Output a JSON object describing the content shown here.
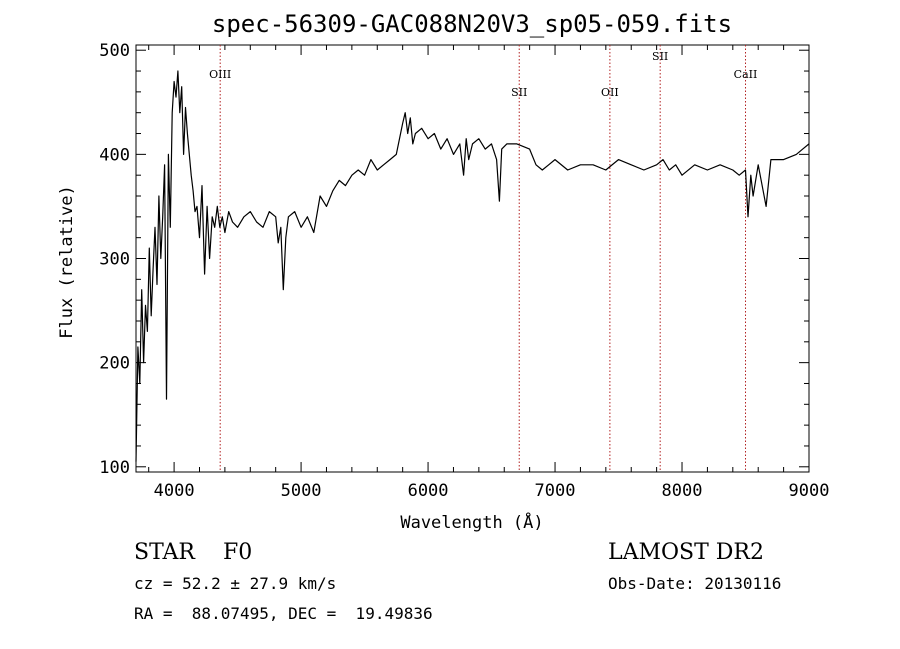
{
  "chart_data": {
    "type": "line",
    "title": "spec-56309-GAC088N20V3_sp05-059.fits",
    "xlabel": "Wavelength (Å)",
    "ylabel": "Flux (relative)",
    "xlim": [
      3700,
      9000
    ],
    "ylim": [
      95,
      505
    ],
    "xticks": [
      4000,
      5000,
      6000,
      7000,
      8000,
      9000
    ],
    "yticks": [
      100,
      200,
      300,
      400,
      500
    ],
    "grid": false,
    "series": [
      {
        "x": [
          3700,
          3715,
          3730,
          3745,
          3760,
          3775,
          3790,
          3805,
          3820,
          3835,
          3850,
          3865,
          3880,
          3895,
          3910,
          3925,
          3940,
          3955,
          3970,
          3985,
          4000,
          4015,
          4030,
          4045,
          4060,
          4075,
          4090,
          4105,
          4120,
          4135,
          4150,
          4165,
          4180,
          4200,
          4220,
          4240,
          4260,
          4280,
          4300,
          4320,
          4340,
          4360,
          4380,
          4400,
          4430,
          4460,
          4500,
          4550,
          4600,
          4650,
          4700,
          4750,
          4800,
          4820,
          4840,
          4860,
          4880,
          4900,
          4950,
          5000,
          5050,
          5100,
          5150,
          5200,
          5250,
          5300,
          5350,
          5400,
          5450,
          5500,
          5550,
          5600,
          5650,
          5700,
          5750,
          5800,
          5820,
          5840,
          5860,
          5880,
          5900,
          5950,
          6000,
          6050,
          6100,
          6150,
          6200,
          6250,
          6280,
          6300,
          6320,
          6350,
          6400,
          6450,
          6500,
          6540,
          6562,
          6580,
          6620,
          6700,
          6800,
          6850,
          6900,
          6950,
          7000,
          7100,
          7200,
          7300,
          7400,
          7500,
          7600,
          7700,
          7800,
          7850,
          7900,
          7950,
          8000,
          8100,
          8200,
          8300,
          8400,
          8450,
          8500,
          8520,
          8542,
          8560,
          8600,
          8662,
          8700,
          8800,
          8900,
          8950,
          9000
        ],
        "values": [
          105,
          215,
          180,
          270,
          200,
          255,
          230,
          310,
          245,
          290,
          330,
          275,
          360,
          300,
          340,
          390,
          165,
          400,
          330,
          440,
          470,
          455,
          480,
          440,
          465,
          400,
          445,
          420,
          400,
          380,
          365,
          345,
          350,
          320,
          370,
          285,
          350,
          300,
          340,
          330,
          350,
          330,
          340,
          325,
          345,
          335,
          330,
          340,
          345,
          335,
          330,
          345,
          340,
          315,
          330,
          270,
          320,
          340,
          345,
          330,
          340,
          325,
          360,
          350,
          365,
          375,
          370,
          380,
          385,
          380,
          395,
          385,
          390,
          395,
          400,
          430,
          440,
          420,
          435,
          410,
          420,
          425,
          415,
          420,
          405,
          415,
          400,
          410,
          380,
          415,
          395,
          410,
          415,
          405,
          410,
          395,
          355,
          405,
          410,
          410,
          405,
          390,
          385,
          390,
          395,
          385,
          390,
          390,
          385,
          395,
          390,
          385,
          390,
          395,
          385,
          390,
          380,
          390,
          385,
          390,
          385,
          380,
          385,
          340,
          380,
          360,
          390,
          350,
          395,
          395,
          400,
          405,
          410
        ]
      }
    ],
    "lines": [
      {
        "name": "OIII",
        "x": 4363
      },
      {
        "name": "SII",
        "x": 6718
      },
      {
        "name": "OII",
        "x": 7432
      },
      {
        "name": "SII",
        "x": 7828
      },
      {
        "name": "CaII",
        "x": 8500
      }
    ]
  },
  "info": {
    "object": "STAR    F0",
    "survey": "LAMOST DR2",
    "cz": "cz = 52.2 ± 27.9 km/s",
    "obs_date": "Obs-Date: 20130116",
    "coords": "RA =  88.07495, DEC =  19.49836"
  },
  "colors": {
    "spectrum": "#000000",
    "line_markers": "#b22222",
    "axes": "#000000"
  }
}
